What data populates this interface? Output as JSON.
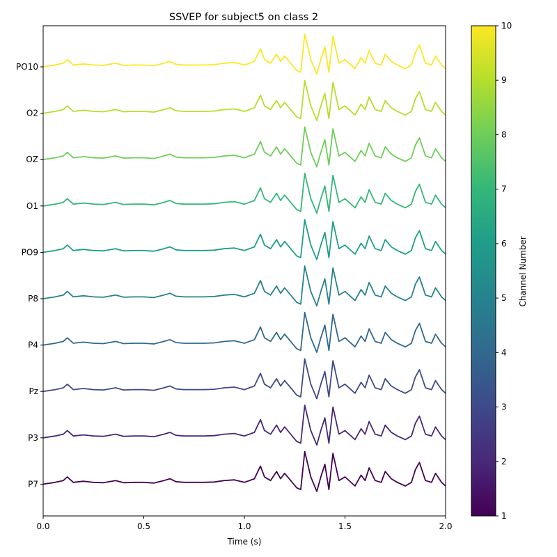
{
  "chart_data": {
    "type": "line",
    "title": "SSVEP for subject5 on class 2",
    "xlabel": "Time (s)",
    "ylabel": "",
    "xlim": [
      0.0,
      2.0
    ],
    "x_ticks": [
      "0.0",
      "0.5",
      "1.0",
      "1.5",
      "2.0"
    ],
    "x_tick_values": [
      0.0,
      0.5,
      1.0,
      1.5,
      2.0
    ],
    "y_tick_labels": [
      "PO10",
      "O2",
      "OZ",
      "O1",
      "PO9",
      "P8",
      "P4",
      "Pz",
      "P3",
      "P7"
    ],
    "colorbar": {
      "label": "Channel Number",
      "range": [
        1,
        10
      ],
      "ticks": [
        "10",
        "9",
        "8",
        "7",
        "6",
        "5",
        "4",
        "3",
        "2",
        "1"
      ],
      "tick_values": [
        10,
        9,
        8,
        7,
        6,
        5,
        4,
        3,
        2,
        1
      ],
      "colormap": "viridis"
    },
    "waveform_time_s": [
      0.0,
      0.06,
      0.1,
      0.12,
      0.15,
      0.2,
      0.25,
      0.3,
      0.36,
      0.4,
      0.45,
      0.5,
      0.55,
      0.6,
      0.63,
      0.66,
      0.7,
      0.75,
      0.8,
      0.85,
      0.9,
      0.95,
      1.0,
      1.05,
      1.08,
      1.1,
      1.13,
      1.16,
      1.18,
      1.2,
      1.23,
      1.26,
      1.28,
      1.3,
      1.33,
      1.36,
      1.38,
      1.4,
      1.42,
      1.44,
      1.47,
      1.5,
      1.55,
      1.58,
      1.6,
      1.62,
      1.65,
      1.68,
      1.7,
      1.73,
      1.76,
      1.8,
      1.83,
      1.85,
      1.87,
      1.9,
      1.93,
      1.95,
      1.98,
      2.0
    ],
    "waveform_deflection": [
      0.0,
      0.05,
      0.1,
      0.2,
      0.05,
      0.08,
      0.05,
      0.04,
      0.1,
      0.04,
      0.05,
      0.05,
      0.03,
      0.1,
      0.15,
      0.07,
      0.05,
      0.05,
      0.05,
      0.06,
      0.1,
      0.12,
      0.05,
      0.15,
      0.5,
      0.2,
      0.1,
      0.35,
      0.15,
      0.3,
      0.1,
      -0.1,
      -0.15,
      0.9,
      0.2,
      -0.2,
      0.2,
      0.55,
      -0.15,
      0.85,
      0.1,
      0.2,
      -0.05,
      0.25,
      0.1,
      0.45,
      0.1,
      0.05,
      0.35,
      0.15,
      0.05,
      -0.05,
      0.05,
      0.4,
      0.6,
      0.1,
      0.05,
      0.3,
      0.05,
      -0.05
    ],
    "series": [
      {
        "name": "PO10",
        "channel": 10,
        "color": "#fde725"
      },
      {
        "name": "O2",
        "channel": 9,
        "color": "#b5de2b"
      },
      {
        "name": "OZ",
        "channel": 8,
        "color": "#6ece58"
      },
      {
        "name": "O1",
        "channel": 7,
        "color": "#35b779"
      },
      {
        "name": "PO9",
        "channel": 6,
        "color": "#1f9e89"
      },
      {
        "name": "P8",
        "channel": 5,
        "color": "#26828e"
      },
      {
        "name": "P4",
        "channel": 4,
        "color": "#31688e"
      },
      {
        "name": "Pz",
        "channel": 3,
        "color": "#3e4989"
      },
      {
        "name": "P3",
        "channel": 2,
        "color": "#482878"
      },
      {
        "name": "P7",
        "channel": 1,
        "color": "#440154"
      }
    ],
    "grid": false,
    "legend": "none"
  }
}
